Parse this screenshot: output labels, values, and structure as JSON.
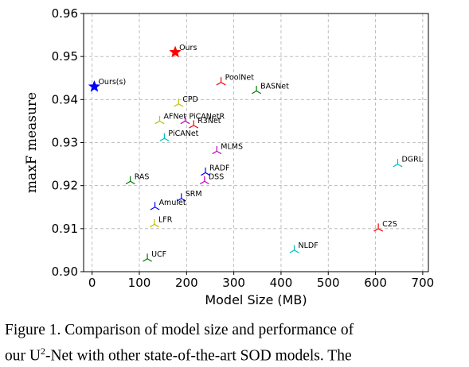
{
  "chart_data": {
    "type": "scatter",
    "xlabel": "Model Size (MB)",
    "ylabel": "maxF measure",
    "xlim": [
      -18,
      712
    ],
    "ylim": [
      0.9,
      0.96
    ],
    "xticks": [
      "0",
      "100",
      "200",
      "300",
      "400",
      "500",
      "600",
      "700"
    ],
    "yticks": [
      "0.90",
      "0.91",
      "0.92",
      "0.93",
      "0.94",
      "0.95",
      "0.96"
    ],
    "grid": true,
    "points": [
      {
        "label": "Ours",
        "x": 176,
        "y": 0.951,
        "marker": "star",
        "color": "#ff0000"
      },
      {
        "label": "Ours(s)",
        "x": 4.7,
        "y": 0.943,
        "marker": "star",
        "color": "#0000ff"
      },
      {
        "label": "PoolNet",
        "x": 273,
        "y": 0.944,
        "marker": "tri",
        "color": "#ff0000"
      },
      {
        "label": "BASNet",
        "x": 348,
        "y": 0.942,
        "marker": "tri",
        "color": "#007700"
      },
      {
        "label": "CPD",
        "x": 183,
        "y": 0.939,
        "marker": "tri",
        "color": "#bfbf00"
      },
      {
        "label": "AFNet",
        "x": 143,
        "y": 0.935,
        "marker": "tri",
        "color": "#bfbf00"
      },
      {
        "label": "PiCANetR",
        "x": 197,
        "y": 0.935,
        "marker": "tri",
        "color": "#bf00bf"
      },
      {
        "label": "R3Net",
        "x": 215,
        "y": 0.934,
        "marker": "tri",
        "color": "#ff0000"
      },
      {
        "label": "PiCANet",
        "x": 153,
        "y": 0.931,
        "marker": "tri",
        "color": "#00bfbf"
      },
      {
        "label": "MLMS",
        "x": 264,
        "y": 0.928,
        "marker": "tri",
        "color": "#bf00bf"
      },
      {
        "label": "DGRL",
        "x": 647,
        "y": 0.925,
        "marker": "tri",
        "color": "#00bfbf"
      },
      {
        "label": "RADF",
        "x": 240,
        "y": 0.923,
        "marker": "tri",
        "color": "#0000ff"
      },
      {
        "label": "DSS",
        "x": 238,
        "y": 0.921,
        "marker": "tri",
        "color": "#bf00bf"
      },
      {
        "label": "RAS",
        "x": 81,
        "y": 0.921,
        "marker": "tri",
        "color": "#007700"
      },
      {
        "label": "SRM",
        "x": 189,
        "y": 0.917,
        "marker": "tri",
        "color": "#0000ff"
      },
      {
        "label": "Amulet",
        "x": 133,
        "y": 0.915,
        "marker": "tri",
        "color": "#0000ff"
      },
      {
        "label": "LFR",
        "x": 132,
        "y": 0.911,
        "marker": "tri",
        "color": "#bfbf00"
      },
      {
        "label": "C2S",
        "x": 606,
        "y": 0.91,
        "marker": "tri",
        "color": "#ff0000"
      },
      {
        "label": "NLDF",
        "x": 428,
        "y": 0.905,
        "marker": "tri",
        "color": "#00bfbf"
      },
      {
        "label": "UCF",
        "x": 117,
        "y": 0.903,
        "marker": "tri",
        "color": "#007700"
      }
    ]
  },
  "caption": {
    "line1": "Figure 1.  Comparison of model size and performance of",
    "line2_pre": "our U",
    "line2_sup": "2",
    "line2_post": "-Net with other state-of-the-art SOD models.  The"
  }
}
